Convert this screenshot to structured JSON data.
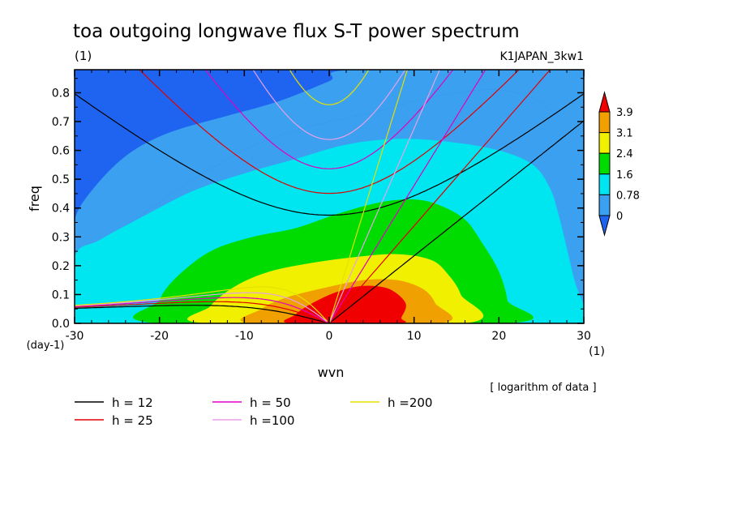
{
  "chart_data": {
    "type": "heatmap",
    "title": "toa outgoing longwave flux S-T power spectrum",
    "subtitle": "(1)",
    "dataset_label": "K1JAPAN_3kw1",
    "xlabel": "wvn",
    "ylabel": "freq",
    "x_unit": "(1)",
    "y_unit": "(day-1)",
    "xlim": [
      -30,
      30
    ],
    "ylim": [
      0,
      0.88
    ],
    "x_ticks": [
      "-30",
      "-20",
      "-10",
      "0",
      "10",
      "20",
      "30"
    ],
    "x_tick_values": [
      -30,
      -20,
      -10,
      0,
      10,
      20,
      30
    ],
    "y_ticks": [
      "0.0",
      "0.1",
      "0.2",
      "0.3",
      "0.4",
      "0.5",
      "0.6",
      "0.7",
      "0.8"
    ],
    "y_tick_values": [
      0,
      0.1,
      0.2,
      0.3,
      0.4,
      0.5,
      0.6,
      0.7,
      0.8
    ],
    "note": "[ logarithm of data ]",
    "colorbar": {
      "levels": [
        "0",
        "0.78",
        "1.6",
        "2.4",
        "3.1",
        "3.9"
      ],
      "level_values": [
        0,
        0.78,
        1.6,
        2.4,
        3.1,
        3.9
      ],
      "colors": [
        "#1e64f0",
        "#3ca0f0",
        "#00e6f0",
        "#00dc00",
        "#f0f000",
        "#f0a000",
        "#f00000"
      ]
    },
    "dispersion_curves": [
      {
        "label": "h = 12",
        "h": 12,
        "color": "#000000"
      },
      {
        "label": "h = 25",
        "h": 25,
        "color": "#e00000"
      },
      {
        "label": "h = 50",
        "h": 50,
        "color": "#e000c0"
      },
      {
        "label": "h =100",
        "h": 100,
        "color": "#e8a0e8"
      },
      {
        "label": "h =200",
        "h": 200,
        "color": "#e8e000"
      }
    ]
  }
}
